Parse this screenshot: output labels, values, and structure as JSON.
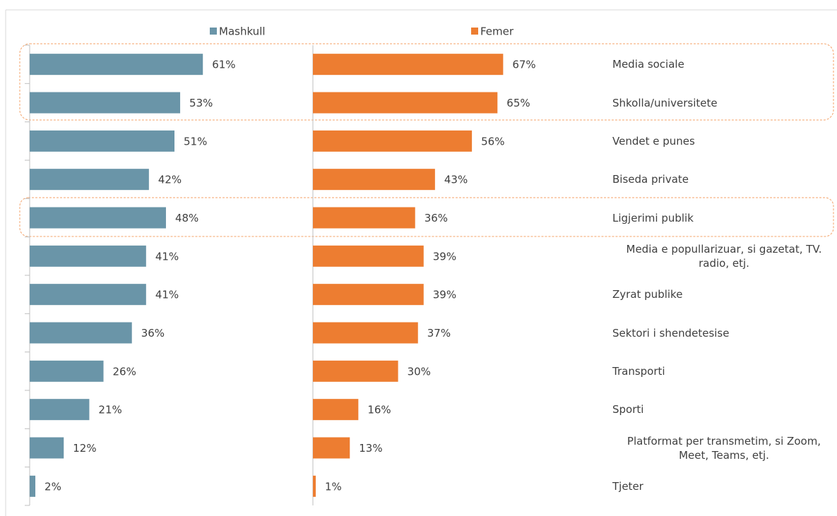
{
  "chart_data": {
    "type": "bar",
    "categories": [
      "Media sociale",
      "Shkolla/universitete",
      "Vendet e punes",
      "Biseda private",
      "Ligjerimi publik",
      "Media e popullarizuar, si gazetat, TV. radio, etj.",
      "Zyrat publike",
      "Sektori i shendetesise",
      "Transporti",
      "Sporti",
      "Platformat per transmetim, si Zoom, Meet, Teams, etj.",
      "Tjeter"
    ],
    "series": [
      {
        "name": "Mashkull",
        "color": "#6a95a8",
        "values": [
          61,
          53,
          51,
          42,
          48,
          41,
          41,
          36,
          26,
          21,
          12,
          2
        ],
        "value_labels": [
          "61%",
          "53%",
          "51%",
          "42%",
          "48%",
          "41%",
          "41%",
          "36%",
          "26%",
          "21%",
          "12%",
          "2%"
        ]
      },
      {
        "name": "Femer",
        "color": "#ed7d31",
        "values": [
          67,
          65,
          56,
          43,
          36,
          39,
          39,
          37,
          30,
          16,
          13,
          1
        ],
        "value_labels": [
          "67%",
          "65%",
          "56%",
          "43%",
          "36%",
          "39%",
          "39%",
          "37%",
          "30%",
          "16%",
          "13%",
          "1%"
        ]
      }
    ]
  }
}
